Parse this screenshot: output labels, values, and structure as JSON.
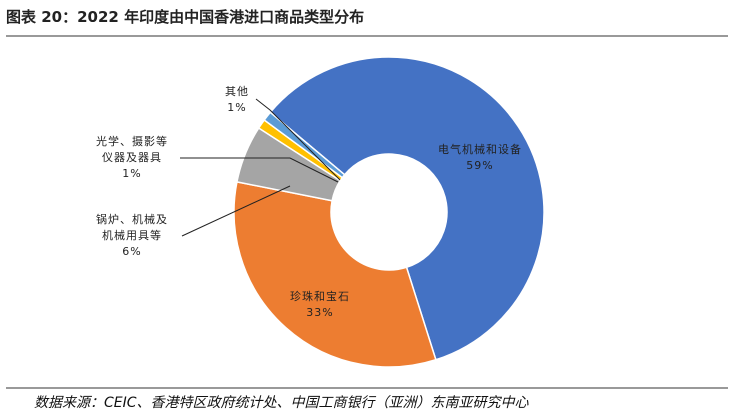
{
  "chart_data": {
    "type": "donut",
    "title": "图表 20：2022 年印度由中国香港进口商品类型分布",
    "categories": [
      "电气机械和设备",
      "珍珠和宝石",
      "锅炉、机械及机械用具等",
      "光学、摄影等仪器及器具",
      "其他"
    ],
    "values": [
      59,
      33,
      6,
      1,
      1
    ],
    "value_labels": [
      "59%",
      "33%",
      "6%",
      "1%",
      "1%"
    ],
    "colors": [
      "#4472c4",
      "#ed7d31",
      "#a5a5a5",
      "#ffc000",
      "#5b9bd5"
    ],
    "source": "数据来源：CEIC、香港特区政府统计处、中国工商银行（亚洲）东南亚研究中心"
  }
}
